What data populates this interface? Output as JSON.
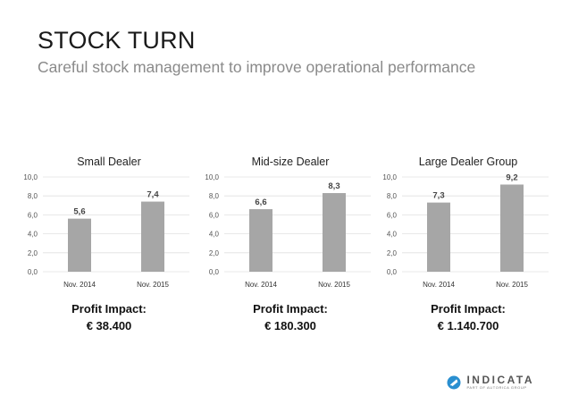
{
  "slide": {
    "title": "STOCK TURN",
    "subtitle": "Careful stock management to improve operational performance"
  },
  "chart_data": [
    {
      "type": "bar",
      "title": "Small Dealer",
      "categories": [
        "Nov. 2014",
        "Nov. 2015"
      ],
      "values": [
        5.6,
        7.4
      ],
      "value_labels": [
        "5,6",
        "7,4"
      ],
      "ylim": [
        0,
        10
      ],
      "yticks": [
        "0,0",
        "2,0",
        "4,0",
        "6,0",
        "8,0",
        "10,0"
      ],
      "grid": true,
      "bar_color": "#a6a6a6",
      "impact_label": "Profit Impact:",
      "impact_value": "€ 38.400"
    },
    {
      "type": "bar",
      "title": "Mid-size Dealer",
      "categories": [
        "Nov. 2014",
        "Nov. 2015"
      ],
      "values": [
        6.6,
        8.3
      ],
      "value_labels": [
        "6,6",
        "8,3"
      ],
      "ylim": [
        0,
        10
      ],
      "yticks": [
        "0,0",
        "2,0",
        "4,0",
        "6,0",
        "8,0",
        "10,0"
      ],
      "grid": true,
      "bar_color": "#a6a6a6",
      "impact_label": "Profit Impact:",
      "impact_value": "€ 180.300"
    },
    {
      "type": "bar",
      "title": "Large Dealer Group",
      "categories": [
        "Nov. 2014",
        "Nov. 2015"
      ],
      "values": [
        7.3,
        9.2
      ],
      "value_labels": [
        "7,3",
        "9,2"
      ],
      "ylim": [
        0,
        10
      ],
      "yticks": [
        "0,0",
        "2,0",
        "4,0",
        "6,0",
        "8,0",
        "10,0"
      ],
      "grid": true,
      "bar_color": "#a6a6a6",
      "impact_label": "Profit Impact:",
      "impact_value": "€ 1.140.700"
    }
  ],
  "logo": {
    "wordmark": "INDICATA",
    "tagline": "PART OF AUTORICA GROUP",
    "icon": "indicata-logo-icon",
    "color": "#2a8fd0"
  }
}
